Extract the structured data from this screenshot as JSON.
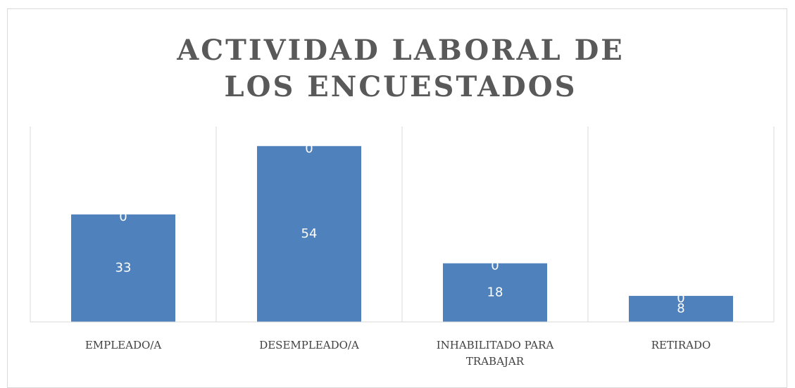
{
  "chart_data": {
    "type": "bar",
    "title": "ACTIVIDAD LABORAL DE LOS ENCUESTADOS",
    "categories": [
      "EMPLEADO/A",
      "DESEMPLEADO/A",
      "INHABILITADO PARA TRABAJAR",
      "RETIRADO"
    ],
    "series": [
      {
        "color": "#4f81bd",
        "values": [
          33,
          54,
          18,
          8
        ]
      },
      {
        "color": "#4f81bd",
        "values": [
          0,
          0,
          0,
          0
        ]
      }
    ],
    "stacked": true,
    "ylim": [
      0,
      60
    ]
  }
}
